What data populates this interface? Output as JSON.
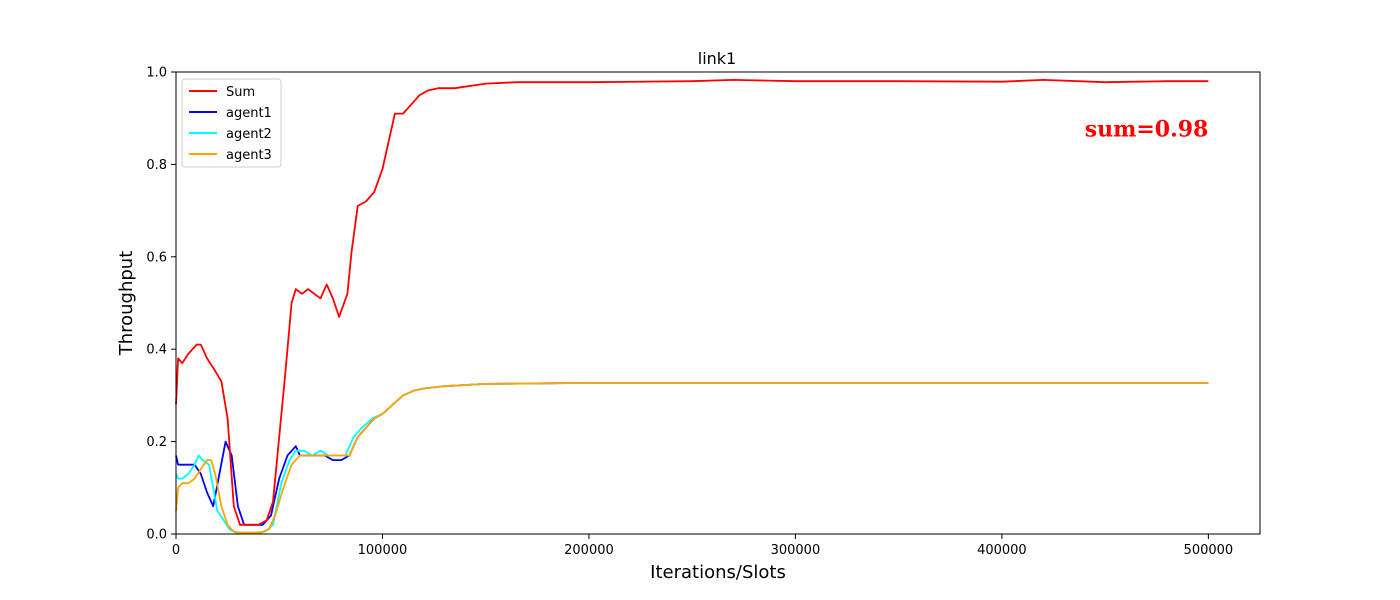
{
  "chart_data": {
    "type": "line",
    "title": "link1",
    "xlabel": "Iterations/Slots",
    "ylabel": "Throughput",
    "xlim": [
      0,
      525000
    ],
    "ylim": [
      0,
      1.0
    ],
    "xticks": [
      0,
      100000,
      200000,
      300000,
      400000,
      500000
    ],
    "xtick_labels": [
      "0",
      "100000",
      "200000",
      "300000",
      "400000",
      "500000"
    ],
    "yticks": [
      0.0,
      0.2,
      0.4,
      0.6,
      0.8,
      1.0
    ],
    "ytick_labels": [
      "0.0",
      "0.2",
      "0.4",
      "0.6",
      "0.8",
      "1.0"
    ],
    "grid": false,
    "legend_position": "top-left",
    "annotation": {
      "text": "sum=0.98",
      "x": 500000,
      "y": 0.86,
      "color": "#ff0000"
    },
    "series": [
      {
        "name": "Sum",
        "color": "#ff0000",
        "x": [
          0,
          1000,
          3000,
          6000,
          10000,
          12000,
          15000,
          18000,
          22000,
          25000,
          28000,
          31000,
          35000,
          40000,
          44000,
          47000,
          50000,
          53000,
          56000,
          58000,
          61000,
          64000,
          67000,
          70000,
          73000,
          76000,
          79000,
          83000,
          85000,
          88000,
          92000,
          96000,
          100000,
          103000,
          106000,
          110000,
          114000,
          118000,
          122000,
          127000,
          135000,
          150000,
          165000,
          200000,
          250000,
          270000,
          300000,
          350000,
          400000,
          420000,
          450000,
          480000,
          500000
        ],
        "y": [
          0.28,
          0.38,
          0.37,
          0.39,
          0.41,
          0.41,
          0.38,
          0.36,
          0.33,
          0.25,
          0.06,
          0.02,
          0.02,
          0.02,
          0.03,
          0.07,
          0.21,
          0.35,
          0.5,
          0.53,
          0.52,
          0.53,
          0.52,
          0.51,
          0.54,
          0.51,
          0.47,
          0.52,
          0.61,
          0.71,
          0.72,
          0.74,
          0.79,
          0.85,
          0.91,
          0.91,
          0.93,
          0.95,
          0.96,
          0.965,
          0.965,
          0.975,
          0.978,
          0.978,
          0.98,
          0.983,
          0.98,
          0.98,
          0.979,
          0.983,
          0.978,
          0.98,
          0.98
        ]
      },
      {
        "name": "agent1",
        "color": "#0000ff",
        "x": [
          0,
          1000,
          3000,
          6000,
          9000,
          12000,
          15000,
          18000,
          21000,
          24000,
          27000,
          30000,
          33000,
          37000,
          42000,
          46000,
          50000,
          54000,
          58000,
          60000,
          64000,
          68000,
          72000,
          76000,
          80000,
          84000,
          88000,
          92000,
          96000,
          100000,
          105000,
          110000,
          115000,
          120000,
          130000,
          150000,
          200000,
          250000,
          300000,
          350000,
          400000,
          450000,
          500000
        ],
        "y": [
          0.17,
          0.15,
          0.15,
          0.15,
          0.15,
          0.13,
          0.09,
          0.06,
          0.13,
          0.2,
          0.17,
          0.06,
          0.02,
          0.02,
          0.02,
          0.04,
          0.12,
          0.17,
          0.19,
          0.17,
          0.17,
          0.17,
          0.17,
          0.16,
          0.16,
          0.17,
          0.21,
          0.23,
          0.25,
          0.26,
          0.28,
          0.3,
          0.31,
          0.315,
          0.32,
          0.325,
          0.327,
          0.327,
          0.327,
          0.327,
          0.327,
          0.327,
          0.327
        ]
      },
      {
        "name": "agent2",
        "color": "#00ffff",
        "x": [
          0,
          1000,
          3000,
          6000,
          9000,
          11000,
          13000,
          16000,
          18000,
          20000,
          23000,
          26000,
          29000,
          33000,
          38000,
          43000,
          47000,
          51000,
          55000,
          58000,
          62000,
          66000,
          70000,
          74000,
          78000,
          82000,
          86000,
          90000,
          95000,
          100000,
          105000,
          110000,
          115000,
          120000,
          130000,
          150000,
          200000,
          250000,
          300000,
          350000,
          400000,
          450000,
          500000
        ],
        "y": [
          0.13,
          0.12,
          0.12,
          0.13,
          0.15,
          0.17,
          0.16,
          0.15,
          0.1,
          0.05,
          0.03,
          0.01,
          0.003,
          0.003,
          0.003,
          0.005,
          0.02,
          0.11,
          0.16,
          0.18,
          0.18,
          0.17,
          0.18,
          0.17,
          0.17,
          0.17,
          0.21,
          0.23,
          0.25,
          0.26,
          0.28,
          0.3,
          0.31,
          0.315,
          0.32,
          0.325,
          0.327,
          0.327,
          0.327,
          0.327,
          0.327,
          0.327,
          0.327
        ]
      },
      {
        "name": "agent3",
        "color": "#ffa500",
        "x": [
          0,
          1000,
          3000,
          6000,
          9000,
          12000,
          15000,
          17000,
          19000,
          22000,
          25000,
          28000,
          31000,
          36000,
          41000,
          45000,
          48000,
          52000,
          56000,
          60000,
          64000,
          68000,
          72000,
          76000,
          80000,
          84000,
          88000,
          92000,
          96000,
          100000,
          105000,
          110000,
          115000,
          120000,
          130000,
          150000,
          200000,
          250000,
          300000,
          350000,
          400000,
          450000,
          500000
        ],
        "y": [
          0.05,
          0.1,
          0.11,
          0.11,
          0.12,
          0.14,
          0.16,
          0.16,
          0.13,
          0.06,
          0.02,
          0.005,
          0.003,
          0.003,
          0.003,
          0.01,
          0.04,
          0.1,
          0.15,
          0.17,
          0.17,
          0.17,
          0.17,
          0.17,
          0.17,
          0.17,
          0.21,
          0.23,
          0.25,
          0.26,
          0.28,
          0.3,
          0.31,
          0.315,
          0.32,
          0.325,
          0.327,
          0.327,
          0.327,
          0.327,
          0.327,
          0.327,
          0.327
        ]
      }
    ]
  }
}
